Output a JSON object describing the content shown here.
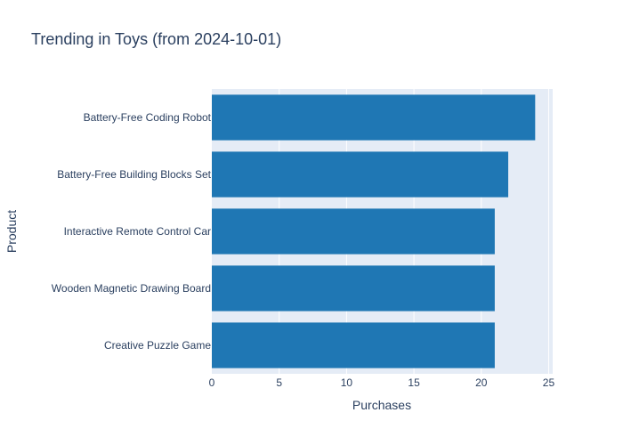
{
  "chart_data": {
    "type": "bar",
    "orientation": "horizontal",
    "title": "Trending in Toys (from 2024-10-01)",
    "xlabel": "Purchases",
    "ylabel": "Product",
    "categories": [
      "Battery-Free Coding Robot",
      "Battery-Free Building Blocks Set",
      "Interactive Remote Control Car",
      "Wooden Magnetic Drawing Board",
      "Creative Puzzle Game"
    ],
    "values": [
      24,
      22,
      21,
      21,
      21
    ],
    "xlim": [
      0,
      25.3
    ],
    "xticks": [
      0,
      5,
      10,
      15,
      20,
      25
    ],
    "grid": true,
    "bar_color": "#1f77b4",
    "plot_bg": "#e5ecf6"
  }
}
